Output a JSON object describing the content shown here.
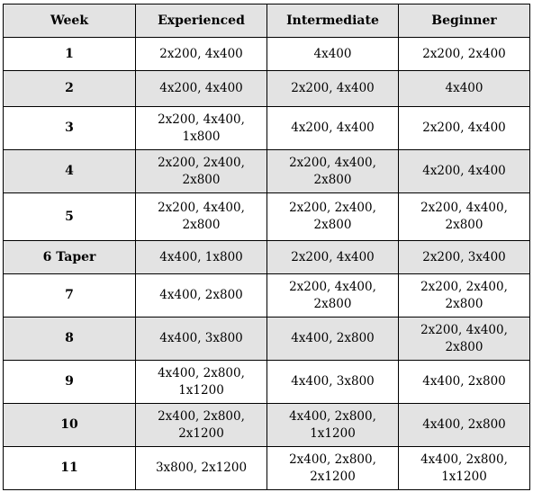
{
  "header": {
    "week": "Week",
    "experienced": "Experienced",
    "intermediate": "Intermediate",
    "beginner": "Beginner"
  },
  "rows": [
    {
      "week": "1",
      "experienced": [
        "2x200, 4x400"
      ],
      "intermediate": [
        "4x400"
      ],
      "beginner": [
        "2x200, 2x400"
      ]
    },
    {
      "week": "2",
      "experienced": [
        "4x200, 4x400"
      ],
      "intermediate": [
        "2x200, 4x400"
      ],
      "beginner": [
        "4x400"
      ]
    },
    {
      "week": "3",
      "experienced": [
        "2x200, 4x400,",
        "1x800"
      ],
      "intermediate": [
        "4x200, 4x400"
      ],
      "beginner": [
        "2x200, 4x400"
      ]
    },
    {
      "week": "4",
      "experienced": [
        "2x200, 2x400,",
        "2x800"
      ],
      "intermediate": [
        "2x200, 4x400,",
        "2x800"
      ],
      "beginner": [
        "4x200, 4x400"
      ]
    },
    {
      "week": "5",
      "experienced": [
        "2x200, 4x400,",
        "2x800"
      ],
      "intermediate": [
        "2x200, 2x400,",
        "2x800"
      ],
      "beginner": [
        "2x200, 4x400,",
        "2x800"
      ]
    },
    {
      "week": "6 Taper",
      "experienced": [
        "4x400, 1x800"
      ],
      "intermediate": [
        "2x200, 4x400"
      ],
      "beginner": [
        "2x200, 3x400"
      ]
    },
    {
      "week": "7",
      "experienced": [
        "4x400, 2x800"
      ],
      "intermediate": [
        "2x200, 4x400,",
        "2x800"
      ],
      "beginner": [
        "2x200, 2x400,",
        "2x800"
      ]
    },
    {
      "week": "8",
      "experienced": [
        "4x400, 3x800"
      ],
      "intermediate": [
        "4x400, 2x800"
      ],
      "beginner": [
        "2x200, 4x400,",
        "2x800"
      ]
    },
    {
      "week": "9",
      "experienced": [
        "4x400, 2x800,",
        "1x1200"
      ],
      "intermediate": [
        "4x400, 3x800"
      ],
      "beginner": [
        "4x400, 2x800"
      ]
    },
    {
      "week": "10",
      "experienced": [
        "2x400, 2x800,",
        "2x1200"
      ],
      "intermediate": [
        "4x400, 2x800,",
        "1x1200"
      ],
      "beginner": [
        "4x400, 2x800"
      ]
    },
    {
      "week": "11",
      "experienced": [
        "3x800, 2x1200"
      ],
      "intermediate": [
        "2x400, 2x800,",
        "2x1200"
      ],
      "beginner": [
        "4x400, 2x800,",
        "1x1200"
      ]
    }
  ]
}
